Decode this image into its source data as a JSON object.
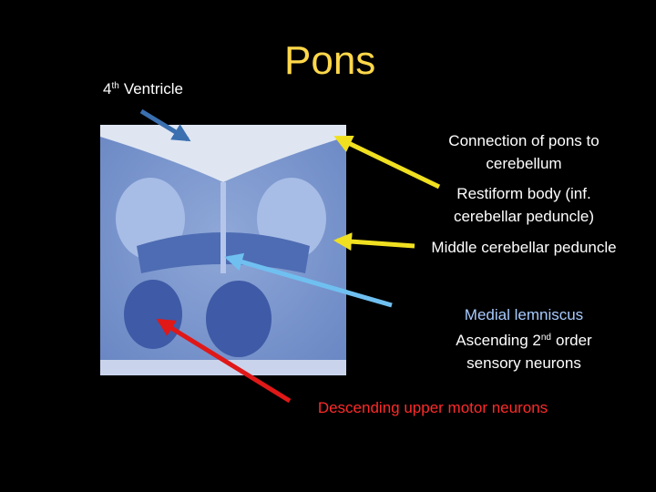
{
  "title": "Pons",
  "labels": [
    {
      "lines": [
        {
          "text": "4",
          "sup": "th",
          "after": "Ventricle"
        }
      ]
    },
    {
      "lines": [
        {
          "text": "Connection of pons to"
        },
        {
          "text": "cerebellum"
        }
      ]
    },
    {
      "lines": [
        {
          "text": "Restiform body (inf."
        },
        {
          "text": "cerebellar peduncle)"
        }
      ]
    },
    {
      "lines": [
        {
          "text": "Middle cerebellar peduncle"
        }
      ]
    },
    {
      "lines": [
        {
          "text": "Medial lemniscus"
        },
        {
          "text": "Ascending 2",
          "sup": "nd",
          "after": "order"
        },
        {
          "text": "sensory neurons"
        }
      ]
    },
    {
      "lines": [
        {
          "text": "Descending upper motor neurons"
        }
      ]
    }
  ]
}
